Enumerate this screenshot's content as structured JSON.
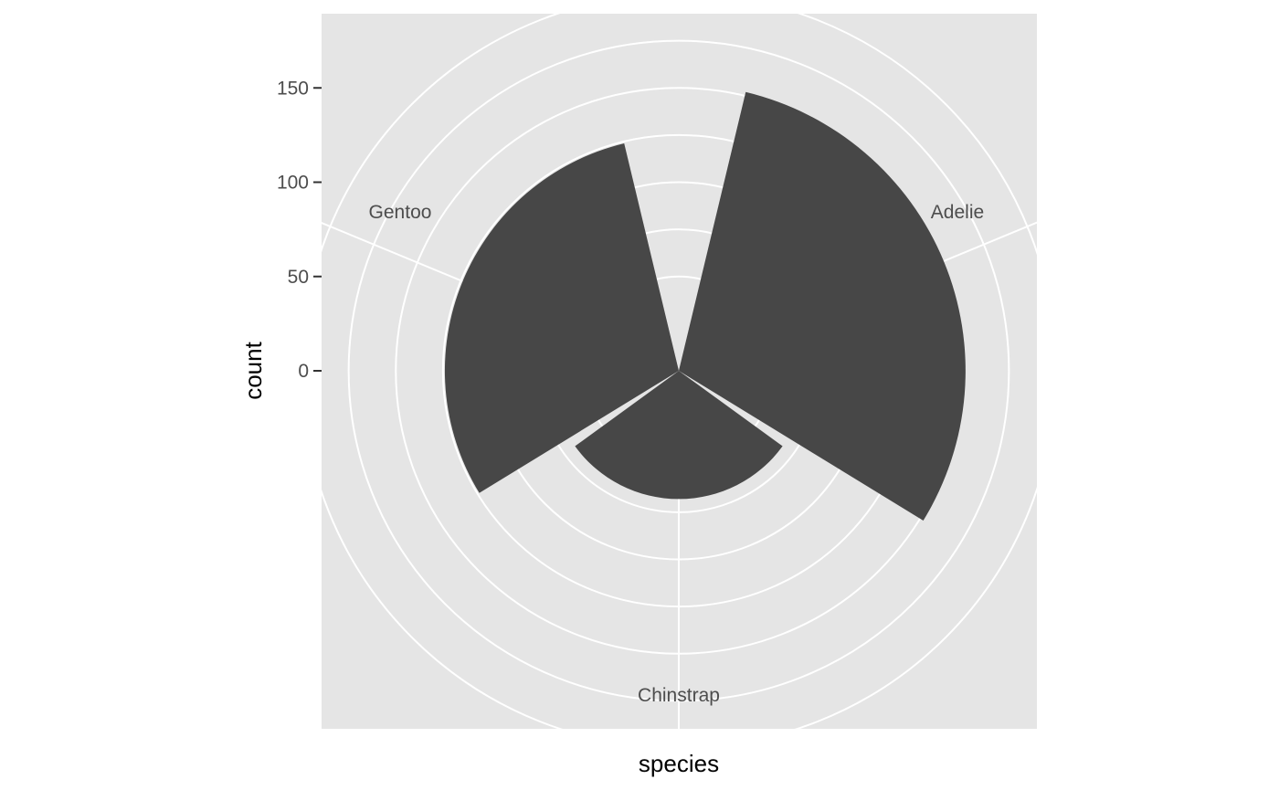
{
  "chart_data": {
    "type": "bar",
    "coord": "polar",
    "categories": [
      "Adelie",
      "Chinstrap",
      "Gentoo"
    ],
    "values": [
      152,
      68,
      124
    ],
    "xlabel": "species",
    "ylabel": "count",
    "y_ticks": [
      0,
      50,
      100,
      150
    ],
    "ylim": [
      -50,
      170
    ],
    "grid": true,
    "colors": {
      "panel": "#e5e5e5",
      "grid": "#ffffff",
      "bar": "#474747",
      "text": "#4d4d4d"
    }
  }
}
